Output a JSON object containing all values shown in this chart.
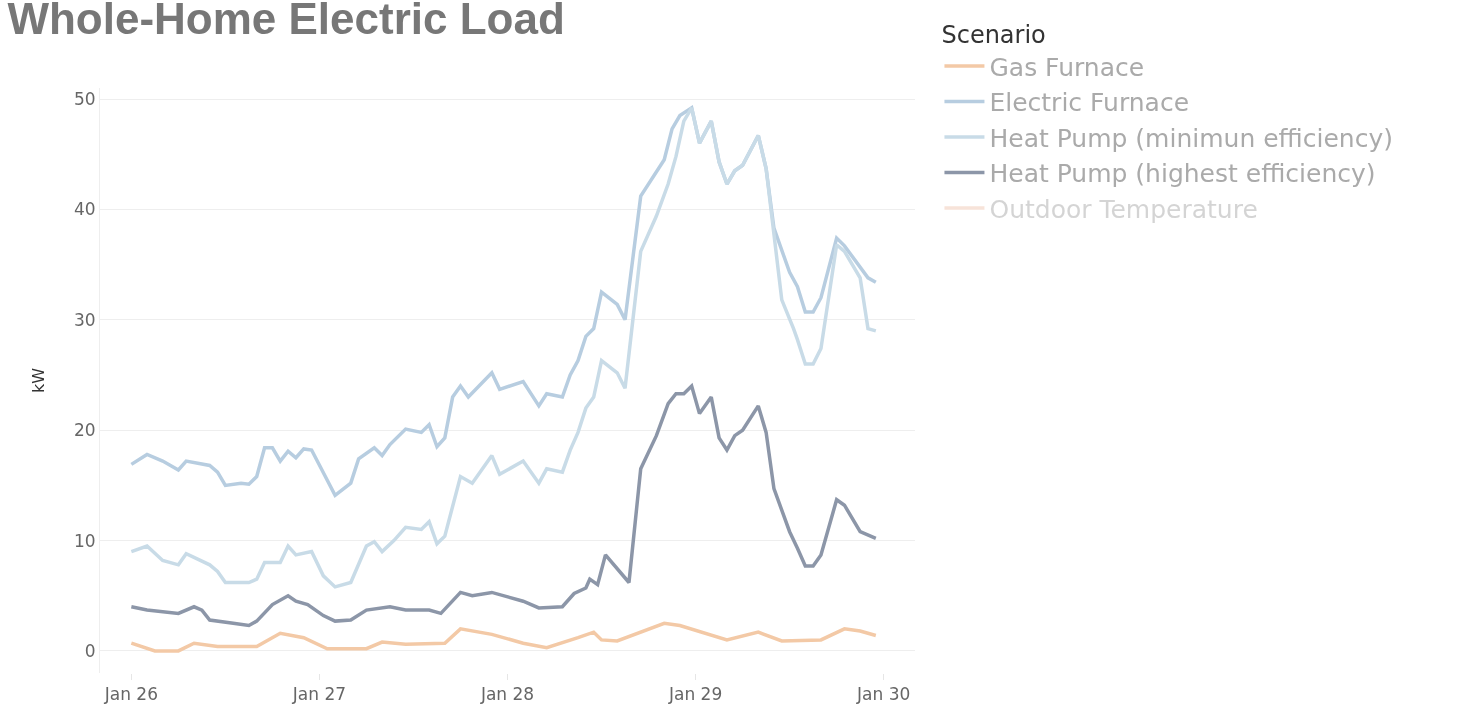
{
  "chart_data": {
    "type": "line",
    "title": "Whole-Home Electric Load",
    "ylabel": "kW",
    "legend_title": "Scenario",
    "legend": "top right",
    "grid": "y",
    "xlim": [
      "--01-25T20:00",
      "--01-30T04:00"
    ],
    "xticks": [
      {
        "value": "--01-26",
        "label": "Jan 26"
      },
      {
        "value": "--01-27",
        "label": "Jan 27"
      },
      {
        "value": "--01-28",
        "label": "Jan 28"
      },
      {
        "value": "--01-29",
        "label": "Jan 29"
      },
      {
        "value": "--01-30",
        "label": "Jan 30"
      }
    ],
    "ylim": [
      -2,
      51
    ],
    "yticks": [
      0,
      10,
      20,
      30,
      40,
      50
    ],
    "series": [
      {
        "name": "Gas Furnace",
        "color": "#f3c9a6",
        "x": [
          "--01-26T00:00",
          "--01-26T03:00",
          "--01-26T06:00",
          "--01-26T08:00",
          "--01-26T11:00",
          "--01-26T16:00",
          "--01-26T19:00",
          "--01-26T22:00",
          "--01-27T01:00",
          "--01-27T06:00",
          "--01-27T08:00",
          "--01-27T11:00",
          "--01-27T16:00",
          "--01-27T18:00",
          "--01-27T22:00",
          "--01-28T02:00",
          "--01-28T05:00",
          "--01-28T09:00",
          "--01-28T11:00",
          "--01-28T12:00",
          "--01-28T14:00",
          "--01-28T20:00",
          "--01-28T22:00",
          "--01-29T04:00",
          "--01-29T08:00",
          "--01-29T11:00",
          "--01-29T16:00",
          "--01-29T19:00",
          "--01-29T21:00",
          "--01-29T23:00"
        ],
        "values": [
          0.7,
          0.0,
          0.0,
          0.7,
          0.4,
          0.4,
          1.6,
          1.2,
          0.2,
          0.2,
          0.8,
          0.6,
          0.7,
          2.0,
          1.5,
          0.7,
          0.3,
          1.2,
          1.7,
          1.0,
          0.9,
          2.5,
          2.3,
          1.0,
          1.7,
          0.9,
          1.0,
          2.0,
          1.8,
          1.4
        ]
      },
      {
        "name": "Electric Furnace",
        "color": "#b7cde0",
        "x": [
          "--01-26T00:00",
          "--01-26T02:00",
          "--01-26T04:00",
          "--01-26T06:00",
          "--01-26T07:00",
          "--01-26T10:00",
          "--01-26T11:00",
          "--01-26T12:00",
          "--01-26T14:00",
          "--01-26T15:00",
          "--01-26T16:00",
          "--01-26T17:00",
          "--01-26T18:00",
          "--01-26T19:00",
          "--01-26T20:00",
          "--01-26T21:00",
          "--01-26T22:00",
          "--01-26T23:00",
          "--01-27T02:00",
          "--01-27T04:00",
          "--01-27T05:00",
          "--01-27T07:00",
          "--01-27T08:00",
          "--01-27T09:00",
          "--01-27T11:00",
          "--01-27T13:00",
          "--01-27T14:00",
          "--01-27T15:00",
          "--01-27T16:00",
          "--01-27T17:00",
          "--01-27T18:00",
          "--01-27T19:00",
          "--01-27T22:00",
          "--01-27T23:00",
          "--01-28T02:00",
          "--01-28T04:00",
          "--01-28T05:00",
          "--01-28T07:00",
          "--01-28T08:00",
          "--01-28T09:00",
          "--01-28T10:00",
          "--01-28T11:00",
          "--01-28T12:00",
          "--01-28T14:00",
          "--01-28T15:00",
          "--01-28T17:00",
          "--01-28T20:00",
          "--01-28T21:00",
          "--01-28T22:00",
          "--01-28T23:30",
          "--01-29T00:30",
          "--01-29T02:00",
          "--01-29T03:00",
          "--01-29T04:00",
          "--01-29T05:00",
          "--01-29T06:00",
          "--01-29T08:00",
          "--01-29T09:00",
          "--01-29T10:00",
          "--01-29T12:00",
          "--01-29T13:00",
          "--01-29T14:00",
          "--01-29T15:00",
          "--01-29T16:00",
          "--01-29T18:00",
          "--01-29T19:00",
          "--01-29T22:00",
          "--01-29T23:00"
        ],
        "values": [
          16.9,
          17.8,
          17.2,
          16.4,
          17.2,
          16.8,
          16.2,
          15.0,
          15.2,
          15.1,
          15.8,
          18.4,
          18.4,
          17.2,
          18.1,
          17.5,
          18.3,
          18.2,
          14.1,
          15.2,
          17.4,
          18.4,
          17.7,
          18.7,
          20.1,
          19.8,
          20.5,
          18.5,
          19.3,
          23.0,
          24.0,
          23.0,
          25.2,
          23.7,
          24.4,
          22.2,
          23.3,
          23.0,
          25.0,
          26.3,
          28.5,
          29.2,
          32.5,
          31.4,
          30.0,
          41.2,
          44.5,
          47.3,
          48.5,
          49.2,
          46.0,
          48.0,
          44.3,
          42.3,
          43.5,
          44.0,
          46.7,
          43.7,
          38.3,
          34.3,
          33.0,
          30.7,
          30.7,
          32.0,
          37.4,
          36.7,
          33.8,
          33.4
        ]
      },
      {
        "name": "Heat Pump (minimun efficiency)",
        "color": "#c8dbe7",
        "x": [
          "--01-26T00:00",
          "--01-26T02:00",
          "--01-26T04:00",
          "--01-26T06:00",
          "--01-26T07:00",
          "--01-26T10:00",
          "--01-26T11:00",
          "--01-26T12:00",
          "--01-26T15:00",
          "--01-26T16:00",
          "--01-26T17:00",
          "--01-26T19:00",
          "--01-26T20:00",
          "--01-26T21:00",
          "--01-26T23:00",
          "--01-27T00:30",
          "--01-27T02:00",
          "--01-27T04:00",
          "--01-27T06:00",
          "--01-27T07:00",
          "--01-27T08:00",
          "--01-27T09:30",
          "--01-27T11:00",
          "--01-27T13:00",
          "--01-27T14:00",
          "--01-27T15:00",
          "--01-27T16:00",
          "--01-27T18:00",
          "--01-27T19:30",
          "--01-27T22:00",
          "--01-27T23:00",
          "--01-28T02:00",
          "--01-28T04:00",
          "--01-28T05:00",
          "--01-28T07:00",
          "--01-28T08:00",
          "--01-28T09:00",
          "--01-28T10:00",
          "--01-28T11:00",
          "--01-28T12:00",
          "--01-28T14:00",
          "--01-28T15:00",
          "--01-28T17:00",
          "--01-28T19:00",
          "--01-28T20:30",
          "--01-28T21:30",
          "--01-28T22:30",
          "--01-28T23:30",
          "--01-29T00:30",
          "--01-29T02:00",
          "--01-29T03:00",
          "--01-29T04:00",
          "--01-29T05:00",
          "--01-29T06:00",
          "--01-29T08:00",
          "--01-29T09:00",
          "--01-29T11:00",
          "--01-29T12:30",
          "--01-29T13:00",
          "--01-29T14:00",
          "--01-29T15:00",
          "--01-29T16:00",
          "--01-29T18:00",
          "--01-29T19:00",
          "--01-29T21:00",
          "--01-29T22:00",
          "--01-29T23:00"
        ],
        "values": [
          9.0,
          9.5,
          8.2,
          7.8,
          8.8,
          7.8,
          7.2,
          6.2,
          6.2,
          6.5,
          8.0,
          8.0,
          9.5,
          8.7,
          9.0,
          6.8,
          5.8,
          6.2,
          9.5,
          9.9,
          9.0,
          10.0,
          11.2,
          11.0,
          11.7,
          9.7,
          10.4,
          15.8,
          15.2,
          17.7,
          16.0,
          17.2,
          15.2,
          16.5,
          16.2,
          18.2,
          19.8,
          22.0,
          23.0,
          26.3,
          25.2,
          23.8,
          36.2,
          39.4,
          42.3,
          44.8,
          48.0,
          49.2,
          46.0,
          48.0,
          44.3,
          42.3,
          43.5,
          44.0,
          46.7,
          43.7,
          31.8,
          29.2,
          28.2,
          26.0,
          26.0,
          27.4,
          36.8,
          36.2,
          33.8,
          29.2,
          29.0
        ]
      },
      {
        "name": "Heat Pump (highest efficiency)",
        "color": "#8c96a8",
        "x": [
          "--01-26T00:00",
          "--01-26T02:00",
          "--01-26T06:00",
          "--01-26T08:00",
          "--01-26T09:00",
          "--01-26T10:00",
          "--01-26T13:00",
          "--01-26T15:00",
          "--01-26T16:00",
          "--01-26T18:00",
          "--01-26T20:00",
          "--01-26T21:00",
          "--01-26T22:30",
          "--01-27T00:30",
          "--01-27T02:00",
          "--01-27T04:00",
          "--01-27T06:00",
          "--01-27T09:00",
          "--01-27T11:00",
          "--01-27T14:00",
          "--01-27T15:30",
          "--01-27T18:00",
          "--01-27T19:30",
          "--01-27T22:00",
          "--01-28T02:00",
          "--01-28T04:00",
          "--01-28T07:00",
          "--01-28T08:30",
          "--01-28T10:00",
          "--01-28T10:30",
          "--01-28T11:30",
          "--01-28T12:30",
          "--01-28T15:30",
          "--01-28T17:00",
          "--01-28T19:00",
          "--01-28T20:30",
          "--01-28T21:30",
          "--01-28T22:30",
          "--01-28T23:30",
          "--01-29T00:30",
          "--01-29T02:00",
          "--01-29T03:00",
          "--01-29T04:00",
          "--01-29T05:00",
          "--01-29T06:00",
          "--01-29T08:00",
          "--01-29T09:00",
          "--01-29T10:00",
          "--01-29T12:00",
          "--01-29T13:00",
          "--01-29T14:00",
          "--01-29T15:00",
          "--01-29T16:00",
          "--01-29T18:00",
          "--01-29T19:00",
          "--01-29T21:00",
          "--01-29T23:00"
        ],
        "values": [
          4.0,
          3.7,
          3.4,
          4.0,
          3.7,
          2.8,
          2.5,
          2.3,
          2.7,
          4.2,
          5.0,
          4.5,
          4.2,
          3.2,
          2.7,
          2.8,
          3.7,
          4.0,
          3.7,
          3.7,
          3.4,
          5.3,
          5.0,
          5.3,
          4.5,
          3.9,
          4.0,
          5.2,
          5.7,
          6.5,
          6.0,
          8.7,
          6.2,
          16.5,
          19.5,
          22.4,
          23.3,
          23.3,
          24.0,
          21.5,
          23.0,
          19.3,
          18.2,
          19.5,
          20.0,
          22.2,
          19.8,
          14.7,
          10.8,
          9.3,
          7.7,
          7.7,
          8.7,
          13.7,
          13.2,
          10.8,
          10.2
        ]
      },
      {
        "name": "Outdoor Temperature",
        "color": "#efc7b3"
      }
    ]
  }
}
